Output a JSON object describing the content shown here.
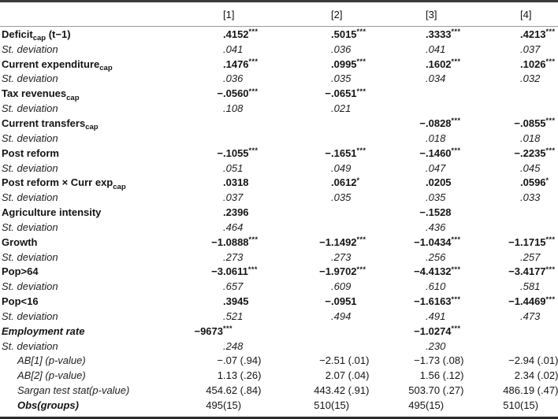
{
  "table": {
    "columns": [
      "[1]",
      "[2]",
      "[3]",
      "[4]"
    ],
    "rows": [
      {
        "label": "Deficit",
        "sub": "cap",
        "tail": " (t−1)",
        "style": "var",
        "values": [
          ".4152***",
          ".5015***",
          ".3333***",
          ".4213***"
        ]
      },
      {
        "label": "St. deviation",
        "style": "sd",
        "values": [
          ".041",
          ".036",
          ".041",
          ".037"
        ]
      },
      {
        "label": "Current expenditure",
        "sub": "cap",
        "style": "var",
        "values": [
          ".1476***",
          ".0995***",
          ".1602***",
          ".1026***"
        ]
      },
      {
        "label": "St. deviation",
        "style": "sd",
        "values": [
          ".036",
          ".035",
          ".034",
          ".032"
        ]
      },
      {
        "label": "Tax revenues",
        "sub": "cap",
        "style": "var",
        "values": [
          "−.0560***",
          "−.0651***",
          "",
          ""
        ]
      },
      {
        "label": "St. deviation",
        "style": "sd",
        "values": [
          ".108",
          ".021",
          "",
          ""
        ]
      },
      {
        "label": "Current transfers",
        "sub": "cap",
        "style": "var",
        "values": [
          "",
          "",
          "−.0828***",
          "−.0855***"
        ]
      },
      {
        "label": "St. deviation",
        "style": "sd",
        "values": [
          "",
          "",
          ".018",
          ".018"
        ]
      },
      {
        "label": "Post reform",
        "style": "var",
        "values": [
          "−.1055***",
          "−.1651***",
          "−.1460***",
          "−.2235***"
        ]
      },
      {
        "label": "St. deviation",
        "style": "sd",
        "values": [
          ".051",
          ".049",
          ".047",
          ".045"
        ]
      },
      {
        "label": "Post reform × Curr exp",
        "sub": "cap",
        "style": "var",
        "values": [
          ".0318",
          ".0612*",
          ".0205",
          ".0596*"
        ]
      },
      {
        "label": "St. deviation",
        "style": "sd",
        "values": [
          ".037",
          ".035",
          ".035",
          ".033"
        ]
      },
      {
        "label": "Agriculture intensity",
        "style": "var",
        "values": [
          ".2396",
          "",
          "−.1528",
          ""
        ]
      },
      {
        "label": "St. deviation",
        "style": "sd",
        "values": [
          ".464",
          "",
          ".436",
          ""
        ]
      },
      {
        "label": "Growth",
        "style": "var",
        "values": [
          "−1.0888***",
          "−1.1492***",
          "−1.0434***",
          "−1.1715***"
        ]
      },
      {
        "label": "St. deviation",
        "style": "sd",
        "values": [
          ".273",
          ".273",
          ".256",
          ".257"
        ]
      },
      {
        "label": "Pop>64",
        "style": "var",
        "values": [
          "−3.0611***",
          "−1.9702***",
          "−4.4132***",
          "−3.4177***"
        ]
      },
      {
        "label": "St. deviation",
        "style": "sd",
        "values": [
          ".657",
          ".609",
          ".610",
          ".581"
        ]
      },
      {
        "label": "Pop<16",
        "style": "var",
        "values": [
          ".3945",
          "−.0951",
          "−1.6163***",
          "−1.4469***"
        ]
      },
      {
        "label": "St. deviation",
        "style": "sd",
        "values": [
          ".521",
          ".494",
          ".491",
          ".473"
        ]
      },
      {
        "label": "Employment rate",
        "style": "var-bi",
        "values": [
          "−9673***",
          "",
          "−1.0274***",
          ""
        ]
      },
      {
        "label": "St. deviation",
        "style": "sd",
        "values": [
          ".248",
          "",
          ".230",
          ""
        ]
      },
      {
        "label": "AB[1] (p-value)",
        "style": "stat",
        "values": [
          "−.07 (.94)",
          "−2.51 (.01)",
          "−1.73 (.08)",
          "−2.94 (.01)"
        ]
      },
      {
        "label": "AB[2] (p-value)",
        "style": "stat",
        "values": [
          "1.13 (.26)",
          "2.07 (.04)",
          "1.56 (.12)",
          "2.34 (.02)"
        ]
      },
      {
        "label": "Sargan test stat(p-value)",
        "style": "stat",
        "values": [
          "454.62 (.84)",
          "443.42 (.91)",
          "503.70 (.27)",
          "486.19 (.47)"
        ]
      },
      {
        "label": "Obs(groups)",
        "style": "obs",
        "values": [
          "495(15)",
          "510(15)",
          "495(15)",
          "510(15)"
        ]
      }
    ]
  }
}
